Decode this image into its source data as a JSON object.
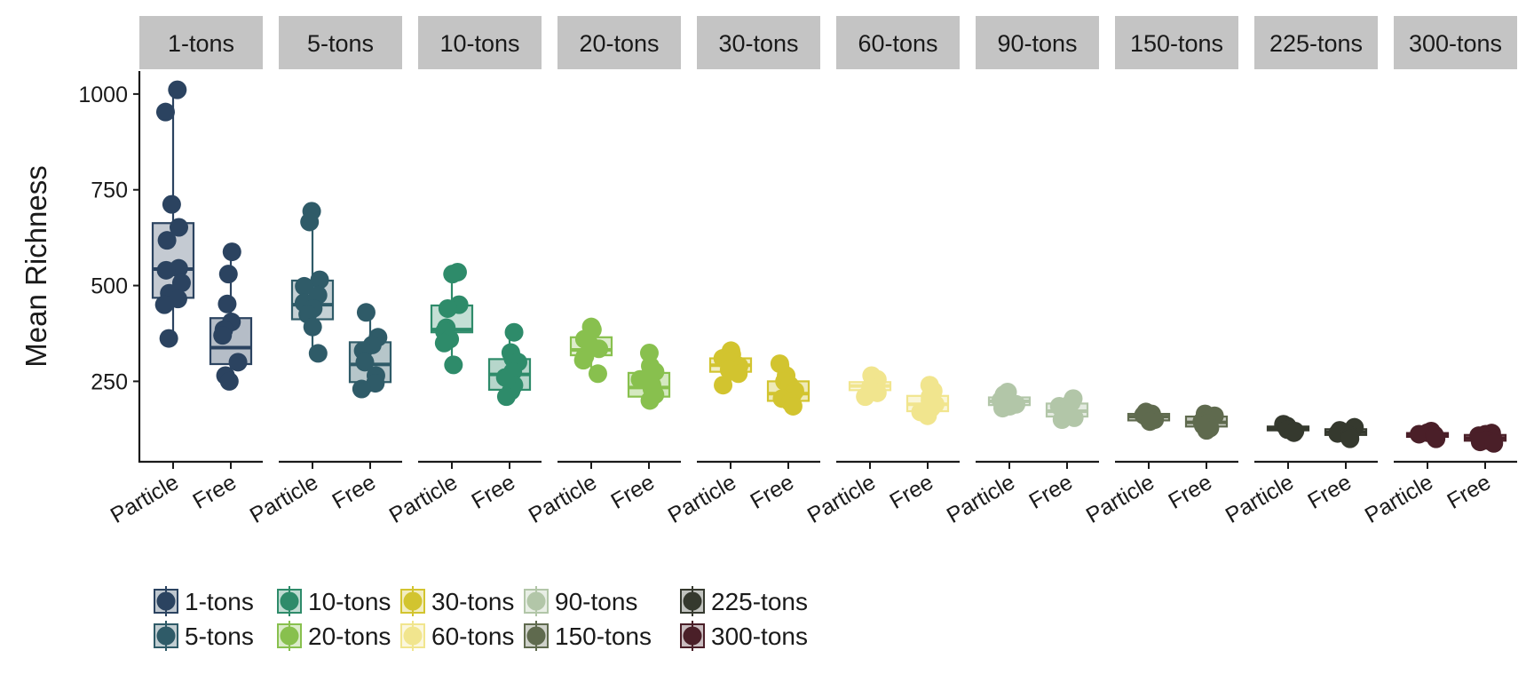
{
  "chart_data": {
    "type": "box",
    "ylabel": "Mean Richness",
    "ylim": [
      40,
      1060
    ],
    "yticks": [
      250,
      500,
      750,
      1000
    ],
    "grid": false,
    "legend_position": "bottom",
    "panels": [
      {
        "name": "1-tons",
        "color": "#2B4360",
        "Particle": {
          "q1": 468,
          "median": 543,
          "q3": 663,
          "whisker_low": 362,
          "whisker_high": 1011,
          "points": [
            1011,
            953,
            712,
            652,
            618,
            545,
            540,
            507,
            480,
            465,
            450,
            362
          ]
        },
        "Free": {
          "q1": 295,
          "median": 338,
          "q3": 415,
          "whisker_low": 248,
          "whisker_high": 588,
          "points": [
            588,
            530,
            452,
            405,
            385,
            370,
            300,
            265,
            250
          ]
        }
      },
      {
        "name": "5-tons",
        "color": "#2F5B68",
        "Particle": {
          "q1": 412,
          "median": 450,
          "q3": 513,
          "whisker_low": 323,
          "whisker_high": 694,
          "points": [
            694,
            666,
            515,
            498,
            475,
            455,
            440,
            425,
            392,
            323
          ]
        },
        "Free": {
          "q1": 248,
          "median": 294,
          "q3": 352,
          "whisker_low": 222,
          "whisker_high": 430,
          "points": [
            430,
            365,
            345,
            330,
            300,
            265,
            245,
            230
          ]
        }
      },
      {
        "name": "10-tons",
        "color": "#2E8B6A",
        "Particle": {
          "q1": 378,
          "median": 385,
          "q3": 448,
          "whisker_low": 293,
          "whisker_high": 535,
          "points": [
            535,
            530,
            450,
            440,
            390,
            380,
            360,
            350,
            293
          ]
        },
        "Free": {
          "q1": 228,
          "median": 268,
          "q3": 308,
          "whisker_low": 210,
          "whisker_high": 378,
          "points": [
            378,
            325,
            310,
            300,
            275,
            260,
            240,
            225,
            210
          ]
        }
      },
      {
        "name": "20-tons",
        "color": "#88C04E",
        "Particle": {
          "q1": 318,
          "median": 332,
          "q3": 365,
          "whisker_low": 270,
          "whisker_high": 392,
          "points": [
            392,
            385,
            360,
            345,
            335,
            315,
            305,
            270
          ]
        },
        "Free": {
          "q1": 210,
          "median": 234,
          "q3": 272,
          "whisker_low": 194,
          "whisker_high": 324,
          "points": [
            324,
            290,
            275,
            255,
            240,
            230,
            215,
            200
          ]
        }
      },
      {
        "name": "30-tons",
        "color": "#D2C42F",
        "Particle": {
          "q1": 275,
          "median": 292,
          "q3": 310,
          "whisker_low": 240,
          "whisker_high": 330,
          "points": [
            330,
            320,
            310,
            300,
            290,
            280,
            270,
            240
          ]
        },
        "Free": {
          "q1": 199,
          "median": 218,
          "q3": 250,
          "whisker_low": 183,
          "whisker_high": 296,
          "points": [
            296,
            265,
            250,
            240,
            225,
            215,
            205,
            195,
            185
          ]
        }
      },
      {
        "name": "60-tons",
        "color": "#F1E58E",
        "Particle": {
          "q1": 227,
          "median": 238,
          "q3": 248,
          "whisker_low": 210,
          "whisker_high": 265,
          "points": [
            265,
            255,
            248,
            240,
            235,
            228,
            220,
            210
          ]
        },
        "Free": {
          "q1": 172,
          "median": 190,
          "q3": 212,
          "whisker_low": 158,
          "whisker_high": 240,
          "points": [
            240,
            225,
            210,
            200,
            190,
            180,
            170,
            160
          ]
        }
      },
      {
        "name": "90-tons",
        "color": "#B2C6A8",
        "Particle": {
          "q1": 188,
          "median": 198,
          "q3": 208,
          "whisker_low": 180,
          "whisker_high": 222,
          "points": [
            222,
            215,
            205,
            200,
            195,
            190,
            185,
            180
          ]
        },
        "Free": {
          "q1": 158,
          "median": 172,
          "q3": 192,
          "whisker_low": 148,
          "whisker_high": 205,
          "points": [
            205,
            195,
            185,
            175,
            165,
            160,
            155,
            150
          ]
        }
      },
      {
        "name": "150-tons",
        "color": "#5F6A4E",
        "Particle": {
          "q1": 148,
          "median": 158,
          "q3": 165,
          "whisker_low": 140,
          "whisker_high": 170,
          "points": [
            170,
            165,
            162,
            158,
            155,
            150,
            145
          ]
        },
        "Free": {
          "q1": 132,
          "median": 143,
          "q3": 158,
          "whisker_low": 122,
          "whisker_high": 165,
          "points": [
            165,
            160,
            150,
            145,
            140,
            135,
            128,
            122
          ]
        }
      },
      {
        "name": "225-tons",
        "color": "#35392E",
        "Particle": {
          "q1": 122,
          "median": 127,
          "q3": 132,
          "whisker_low": 115,
          "whisker_high": 138,
          "points": [
            138,
            133,
            130,
            127,
            124,
            120,
            116
          ]
        },
        "Free": {
          "q1": 110,
          "median": 117,
          "q3": 125,
          "whisker_low": 100,
          "whisker_high": 130,
          "points": [
            130,
            126,
            122,
            118,
            114,
            110,
            105,
            100
          ]
        }
      },
      {
        "name": "300-tons",
        "color": "#4A1F28",
        "Particle": {
          "q1": 105,
          "median": 110,
          "q3": 115,
          "whisker_low": 100,
          "whisker_high": 120,
          "points": [
            120,
            116,
            112,
            110,
            108,
            104,
            100
          ]
        },
        "Free": {
          "q1": 95,
          "median": 102,
          "q3": 110,
          "whisker_low": 88,
          "whisker_high": 115,
          "points": [
            115,
            112,
            108,
            104,
            100,
            96,
            92,
            88
          ]
        }
      }
    ],
    "categories": [
      "Particle",
      "Free"
    ],
    "legend": {
      "entries": [
        "1-tons",
        "5-tons",
        "10-tons",
        "20-tons",
        "30-tons",
        "60-tons",
        "90-tons",
        "150-tons",
        "225-tons",
        "300-tons"
      ]
    }
  }
}
